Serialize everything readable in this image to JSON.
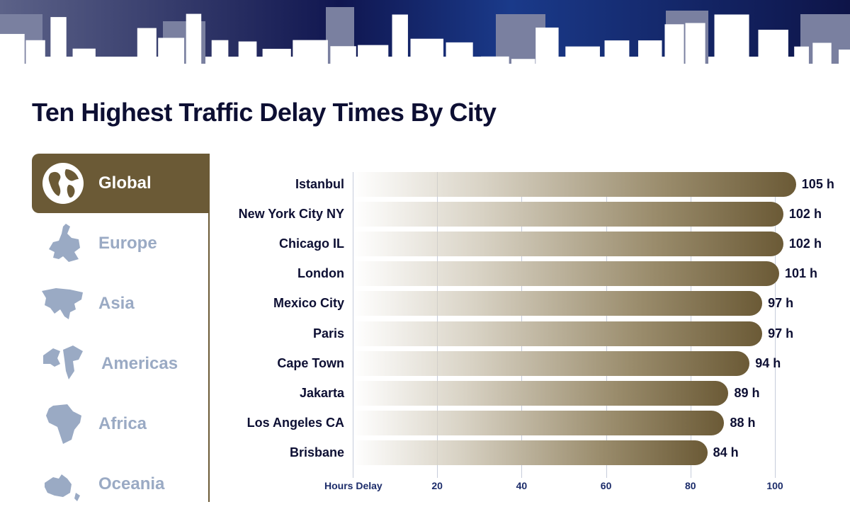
{
  "title": "Ten Highest Traffic Delay Times By City",
  "sidebar": {
    "items": [
      {
        "label": "Global",
        "icon": "globe-icon",
        "active": true
      },
      {
        "label": "Europe",
        "icon": "europe-map-icon",
        "active": false
      },
      {
        "label": "Asia",
        "icon": "asia-map-icon",
        "active": false
      },
      {
        "label": "Americas",
        "icon": "americas-map-icon",
        "active": false
      },
      {
        "label": "Africa",
        "icon": "africa-map-icon",
        "active": false
      },
      {
        "label": "Oceania",
        "icon": "oceania-map-icon",
        "active": false
      }
    ]
  },
  "colors": {
    "accent": "#6b5a36",
    "text": "#0d0f33",
    "inactive": "#9aaac4",
    "axis": "#1c2c6a"
  },
  "chart_data": {
    "type": "bar",
    "orientation": "horizontal",
    "title": "Ten Highest Traffic Delay Times By City",
    "xlabel": "Hours Delay",
    "categories": [
      "Istanbul",
      "New York City NY",
      "Chicago IL",
      "London",
      "Mexico City",
      "Paris",
      "Cape Town",
      "Jakarta",
      "Los Angeles CA",
      "Brisbane"
    ],
    "values": [
      105,
      102,
      102,
      101,
      97,
      97,
      94,
      89,
      88,
      84
    ],
    "value_labels": [
      "105 h",
      "102 h",
      "102 h",
      "101 h",
      "97 h",
      "97 h",
      "94 h",
      "89 h",
      "88 h",
      "84 h"
    ],
    "xticks": [
      "20",
      "40",
      "60",
      "80",
      "100"
    ],
    "xlim": [
      0,
      100
    ],
    "grid": true
  }
}
